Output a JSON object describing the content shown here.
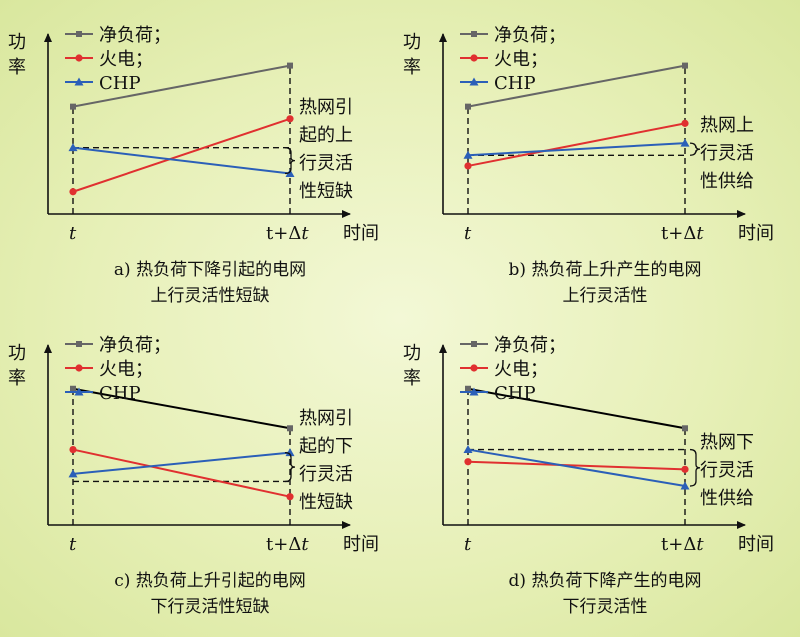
{
  "legend": {
    "net_load": "净负荷；",
    "thermal": "火电；",
    "chp": "CHP"
  },
  "axis": {
    "ylabel": [
      "功",
      "率"
    ],
    "xlabel": "时间",
    "tick_start": "t",
    "tick_end_prefix": "t+Δ",
    "tick_end_italic": "t"
  },
  "colors": {
    "net_load_grey": "#666666",
    "net_load_black": "#000000",
    "thermal": "#e03030",
    "chp": "#2b5fb8"
  },
  "chart_data": [
    {
      "type": "line",
      "x": [
        "t",
        "t+Δt"
      ],
      "ylim": [
        0,
        1
      ],
      "series": [
        {
          "name": "净负荷；",
          "values": [
            0.68,
            0.95
          ]
        },
        {
          "name": "火电；",
          "values": [
            0.12,
            0.6
          ]
        },
        {
          "name": "CHP",
          "values": [
            0.41,
            0.24
          ]
        }
      ],
      "reference_level": 0.41,
      "annotation_lines": [
        "热网引",
        "起的上",
        "行灵活",
        "性短缺"
      ],
      "caption_lines": [
        "a) 热负荷下降引起的电网",
        "上行灵活性短缺"
      ]
    },
    {
      "type": "line",
      "x": [
        "t",
        "t+Δt"
      ],
      "ylim": [
        0,
        1
      ],
      "series": [
        {
          "name": "净负荷；",
          "values": [
            0.68,
            0.95
          ]
        },
        {
          "name": "火电；",
          "values": [
            0.29,
            0.57
          ]
        },
        {
          "name": "CHP",
          "values": [
            0.36,
            0.44
          ]
        }
      ],
      "reference_level": 0.36,
      "annotation_lines": [
        "热网上",
        "行灵活",
        "性供给"
      ],
      "caption_lines": [
        "b) 热负荷上升产生的电网",
        "上行灵活性"
      ]
    },
    {
      "type": "line",
      "x": [
        "t",
        "t+Δt"
      ],
      "ylim": [
        0,
        1
      ],
      "series": [
        {
          "name": "净负荷；",
          "values": [
            0.87,
            0.61
          ]
        },
        {
          "name": "火电；",
          "values": [
            0.47,
            0.16
          ]
        },
        {
          "name": "CHP",
          "values": [
            0.31,
            0.45
          ]
        }
      ],
      "reference_level": 0.26,
      "annotation_lines": [
        "热网引",
        "起的下",
        "行灵活",
        "性短缺"
      ],
      "caption_lines": [
        "c) 热负荷上升引起的电网",
        "下行灵活性短缺"
      ]
    },
    {
      "type": "line",
      "x": [
        "t",
        "t+Δt"
      ],
      "ylim": [
        0,
        1
      ],
      "series": [
        {
          "name": "净负荷；",
          "values": [
            0.87,
            0.61
          ]
        },
        {
          "name": "火电；",
          "values": [
            0.39,
            0.34
          ]
        },
        {
          "name": "CHP",
          "values": [
            0.47,
            0.23
          ]
        }
      ],
      "reference_level": 0.47,
      "annotation_lines": [
        "热网下",
        "行灵活",
        "性供给"
      ],
      "caption_lines": [
        "d) 热负荷下降产生的电网",
        "下行灵活性"
      ]
    }
  ]
}
